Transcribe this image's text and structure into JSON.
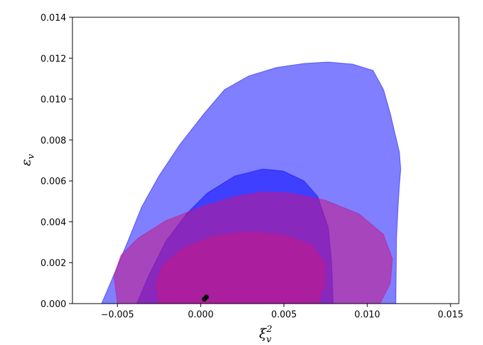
{
  "chart_data": {
    "type": "contour",
    "xlabel": {
      "base": "ξ",
      "sub": "v",
      "sup": "2"
    },
    "ylabel": {
      "base": "ε",
      "sub": "v"
    },
    "xlim": [
      -0.0077,
      0.0155
    ],
    "ylim": [
      0,
      0.014
    ],
    "xticks": [
      {
        "value": -0.005,
        "label": "−0.005"
      },
      {
        "value": 0,
        "label": "0.000"
      },
      {
        "value": 0.005,
        "label": "0.005"
      },
      {
        "value": 0.01,
        "label": "0.010"
      },
      {
        "value": 0.015,
        "label": "0.015"
      }
    ],
    "yticks": [
      {
        "value": 0,
        "label": "0.000"
      },
      {
        "value": 0.002,
        "label": "0.002"
      },
      {
        "value": 0.004,
        "label": "0.004"
      },
      {
        "value": 0.006,
        "label": "0.006"
      },
      {
        "value": 0.008,
        "label": "0.008"
      },
      {
        "value": 0.01,
        "label": "0.010"
      },
      {
        "value": 0.012,
        "label": "0.012"
      },
      {
        "value": 0.014,
        "label": "0.014"
      }
    ],
    "series": [
      {
        "color": "#0000ff",
        "opacity": 0.5,
        "x": [
          -0.00595,
          -0.00542,
          -0.00438,
          -0.00355,
          -0.00251,
          -0.00127,
          0.00019,
          0.00143,
          0.00288,
          0.00454,
          0.0062,
          0.00766,
          0.00911,
          0.01035,
          0.01098,
          0.01139,
          0.01168,
          0.01193,
          0.01201,
          0.01193,
          0.01185,
          0.01176,
          0.01172
        ],
        "y": [
          0,
          0.00101,
          0.00304,
          0.00472,
          0.00624,
          0.00776,
          0.00928,
          0.01046,
          0.01113,
          0.01154,
          0.01174,
          0.01181,
          0.01171,
          0.0114,
          0.01046,
          0.00928,
          0.00827,
          0.00742,
          0.00658,
          0.00574,
          0.00472,
          0.00321,
          0
        ]
      },
      {
        "color": "#0000ff",
        "opacity": 0.5,
        "x": [
          -0.00384,
          -0.00313,
          -0.0021,
          -0.00085,
          0.00039,
          0.00205,
          0.00371,
          0.00496,
          0.0062,
          0.00703,
          0.00766,
          0.00786,
          0.00795
        ],
        "y": [
          0,
          0.00135,
          0.00304,
          0.00439,
          0.0054,
          0.00624,
          0.00658,
          0.00648,
          0.006,
          0.00523,
          0.00371,
          0.00202,
          0
        ]
      },
      {
        "color": "#c71585",
        "opacity": 0.55,
        "x": [
          -0.005,
          -0.00521,
          -0.00479,
          -0.00376,
          -0.0021,
          -2e-05,
          0.00205,
          0.00371,
          0.00537,
          0.00745,
          0.00952,
          0.01098,
          0.01151,
          0.01139,
          0.01077
        ],
        "y": [
          0,
          0.00135,
          0.00236,
          0.0032,
          0.00405,
          0.00472,
          0.00523,
          0.00546,
          0.0054,
          0.00506,
          0.00438,
          0.00337,
          0.00219,
          0.00101,
          0
        ]
      },
      {
        "color": "#c71585",
        "opacity": 0.55,
        "x": [
          -0.00251,
          -0.00268,
          -0.0023,
          -0.00106,
          0.00081,
          0.00288,
          0.00496,
          0.00662,
          0.00745,
          0.00745,
          0.00703
        ],
        "y": [
          0,
          0.00101,
          0.00186,
          0.0027,
          0.00331,
          0.00351,
          0.00337,
          0.00287,
          0.00202,
          0.00101,
          0
        ]
      }
    ],
    "points": {
      "color": "#000000",
      "x": [
        0.00022,
        0.00034
      ],
      "y": [
        0.00022,
        0.00032
      ]
    }
  }
}
